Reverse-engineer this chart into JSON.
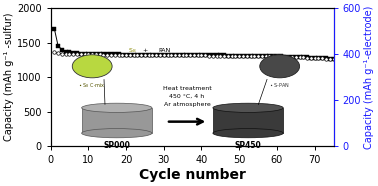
{
  "xlabel": "Cycle number",
  "ylabel_left": "Capacity (mAh g⁻¹ -sulfur)",
  "ylabel_right": "Capacity (mAh g⁻¹-electrode)",
  "xlim": [
    0,
    75
  ],
  "ylim_left": [
    0,
    2000
  ],
  "ylim_right": [
    0,
    600
  ],
  "xticks": [
    0,
    10,
    20,
    30,
    40,
    50,
    60,
    70
  ],
  "yticks_left": [
    0,
    500,
    1000,
    1500,
    2000
  ],
  "yticks_right": [
    0,
    200,
    400,
    600
  ],
  "cycles_all": [
    1,
    2,
    3,
    4,
    5,
    6,
    7,
    8,
    9,
    10,
    11,
    12,
    13,
    14,
    15,
    16,
    17,
    18,
    19,
    20,
    21,
    22,
    23,
    24,
    25,
    26,
    27,
    28,
    29,
    30,
    31,
    32,
    33,
    34,
    35,
    36,
    37,
    38,
    39,
    40,
    41,
    42,
    43,
    44,
    45,
    46,
    47,
    48,
    49,
    50,
    51,
    52,
    53,
    54,
    55,
    56,
    57,
    58,
    59,
    60,
    61,
    62,
    63,
    64,
    65,
    66,
    67,
    68,
    69,
    70,
    71,
    72,
    73,
    74,
    75
  ],
  "discharge_values": [
    1700,
    1450,
    1400,
    1370,
    1360,
    1350,
    1345,
    1340,
    1338,
    1335,
    1333,
    1332,
    1331,
    1330,
    1330,
    1329,
    1328,
    1328,
    1327,
    1327,
    1326,
    1326,
    1325,
    1325,
    1324,
    1324,
    1323,
    1323,
    1322,
    1322,
    1321,
    1321,
    1320,
    1320,
    1319,
    1319,
    1318,
    1318,
    1317,
    1317,
    1316,
    1316,
    1315,
    1315,
    1314,
    1314,
    1313,
    1313,
    1312,
    1312,
    1311,
    1310,
    1309,
    1308,
    1307,
    1306,
    1305,
    1304,
    1303,
    1302,
    1300,
    1298,
    1296,
    1294,
    1292,
    1290,
    1288,
    1285,
    1282,
    1280,
    1278,
    1276,
    1272,
    1268,
    1260
  ],
  "charge_values": [
    1360,
    1345,
    1340,
    1338,
    1336,
    1334,
    1333,
    1332,
    1331,
    1330,
    1329,
    1328,
    1328,
    1327,
    1327,
    1326,
    1326,
    1325,
    1325,
    1324,
    1324,
    1323,
    1323,
    1322,
    1322,
    1321,
    1321,
    1320,
    1320,
    1319,
    1319,
    1318,
    1318,
    1317,
    1317,
    1316,
    1316,
    1315,
    1315,
    1314,
    1314,
    1313,
    1313,
    1312,
    1312,
    1311,
    1311,
    1310,
    1310,
    1309,
    1308,
    1307,
    1306,
    1305,
    1304,
    1303,
    1302,
    1301,
    1300,
    1299,
    1297,
    1295,
    1293,
    1291,
    1289,
    1287,
    1285,
    1282,
    1279,
    1277,
    1275,
    1273,
    1269,
    1265,
    1258
  ],
  "bg_color": "#ffffff",
  "right_axis_color": "#1a1aff",
  "xlabel_fontsize": 10,
  "ylabel_fontsize": 7,
  "tick_fontsize": 7,
  "sp000_disk_color": "#909090",
  "sp000_top_color": "#a8a8a8",
  "sp450_disk_color": "#404040",
  "sp450_top_color": "#585858",
  "sp000_zoom_color": "#b8d840",
  "sp450_zoom_color": "#484848",
  "arrow_color": "#000000",
  "label_sp000": "SP000",
  "label_sp450": "SP450",
  "heat_text1": "Heat treatment",
  "heat_text2": "450 °C, 4 h",
  "heat_text3": "Ar atmosphere"
}
